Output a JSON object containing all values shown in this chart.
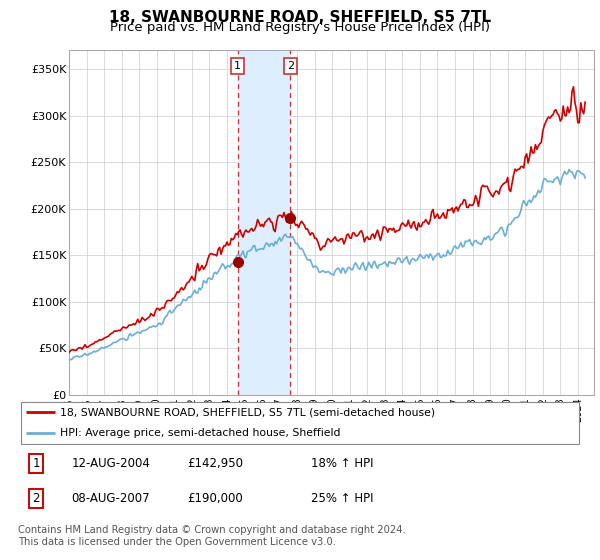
{
  "title": "18, SWANBOURNE ROAD, SHEFFIELD, S5 7TL",
  "subtitle": "Price paid vs. HM Land Registry's House Price Index (HPI)",
  "title_fontsize": 11,
  "subtitle_fontsize": 9.5,
  "ylim": [
    0,
    370000
  ],
  "yticks": [
    0,
    50000,
    100000,
    150000,
    200000,
    250000,
    300000,
    350000
  ],
  "ytick_labels": [
    "£0",
    "£50K",
    "£100K",
    "£150K",
    "£200K",
    "£250K",
    "£300K",
    "£350K"
  ],
  "sale1_date": 2004.62,
  "sale1_price": 142950,
  "sale1_label": "1",
  "sale2_date": 2007.62,
  "sale2_price": 190000,
  "sale2_label": "2",
  "hpi_color": "#6baed6",
  "price_color": "#cc0000",
  "shading_color": "#ddeeff",
  "legend_price_label": "18, SWANBOURNE ROAD, SHEFFIELD, S5 7TL (semi-detached house)",
  "legend_hpi_label": "HPI: Average price, semi-detached house, Sheffield",
  "table_row1": [
    "1",
    "12-AUG-2004",
    "£142,950",
    "18% ↑ HPI"
  ],
  "table_row2": [
    "2",
    "08-AUG-2007",
    "£190,000",
    "25% ↑ HPI"
  ],
  "footer": "Contains HM Land Registry data © Crown copyright and database right 2024.\nThis data is licensed under the Open Government Licence v3.0."
}
